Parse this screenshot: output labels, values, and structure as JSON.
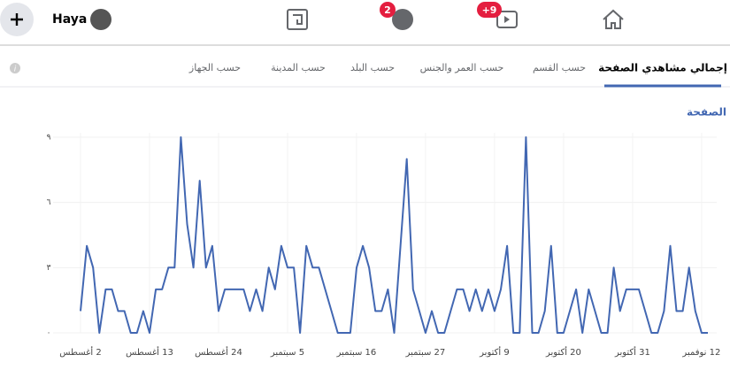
{
  "nav": {
    "user": "Haya",
    "badges": [
      "2",
      "+9"
    ]
  },
  "tabs": [
    "إجمالي مشاهدي الصفحة",
    "حسب القسم",
    "حسب العمر والجنس",
    "حسب البلد",
    "حسب المدينة",
    "حسب الجهاز"
  ],
  "chart_data": {
    "type": "line",
    "title": "إجمالي مشاهدي الصفحة",
    "color": "#4267b2",
    "categories": [
      "2 أغسطس",
      null,
      null,
      null,
      null,
      null,
      null,
      null,
      null,
      null,
      null,
      "13 أغسطس",
      null,
      null,
      null,
      null,
      null,
      null,
      null,
      null,
      null,
      null,
      "24 أغسطس",
      null,
      null,
      null,
      null,
      null,
      null,
      null,
      null,
      null,
      null,
      "5 سبتمبر",
      null,
      null,
      null,
      null,
      null,
      null,
      null,
      null,
      null,
      null,
      "16 سبتمبر",
      null,
      null,
      null,
      null,
      null,
      null,
      null,
      null,
      null,
      null,
      "27 سبتمبر",
      null,
      null,
      null,
      null,
      null,
      null,
      null,
      null,
      null,
      null,
      "9 أكتوبر",
      null,
      null,
      null,
      null,
      null,
      null,
      null,
      null,
      null,
      null,
      "20 أكتوبر",
      null,
      null,
      null,
      null,
      null,
      null,
      null,
      null,
      null,
      null,
      "31 أكتوبر",
      null,
      null,
      null,
      null,
      null,
      null,
      null,
      null,
      null,
      null,
      "12 نوفمبر",
      null
    ],
    "values": [
      1,
      4,
      3,
      0,
      2,
      2,
      1,
      1,
      0,
      0,
      1,
      0,
      2,
      2,
      3,
      3,
      9,
      5,
      3,
      7,
      3,
      4,
      1,
      2,
      2,
      2,
      2,
      1,
      2,
      1,
      3,
      2,
      4,
      3,
      3,
      0,
      4,
      3,
      3,
      2,
      1,
      0,
      0,
      0,
      3,
      4,
      3,
      1,
      1,
      2,
      0,
      4,
      8,
      2,
      1,
      0,
      1,
      0,
      0,
      1,
      2,
      2,
      1,
      2,
      1,
      2,
      1,
      2,
      4,
      0,
      0,
      9,
      0,
      0,
      1,
      4,
      0,
      0,
      1,
      2,
      0,
      2,
      1,
      0,
      0,
      3,
      1,
      2,
      2,
      2,
      1,
      0,
      0,
      1,
      4,
      1,
      1,
      3,
      1,
      0,
      0
    ],
    "ylim": [
      0,
      9
    ],
    "yticks": [
      {
        "value": 0,
        "label": "٠"
      },
      {
        "value": 3,
        "label": "٣"
      },
      {
        "value": 6,
        "label": "٦"
      },
      {
        "value": 9,
        "label": "٩"
      }
    ],
    "grid": true
  }
}
